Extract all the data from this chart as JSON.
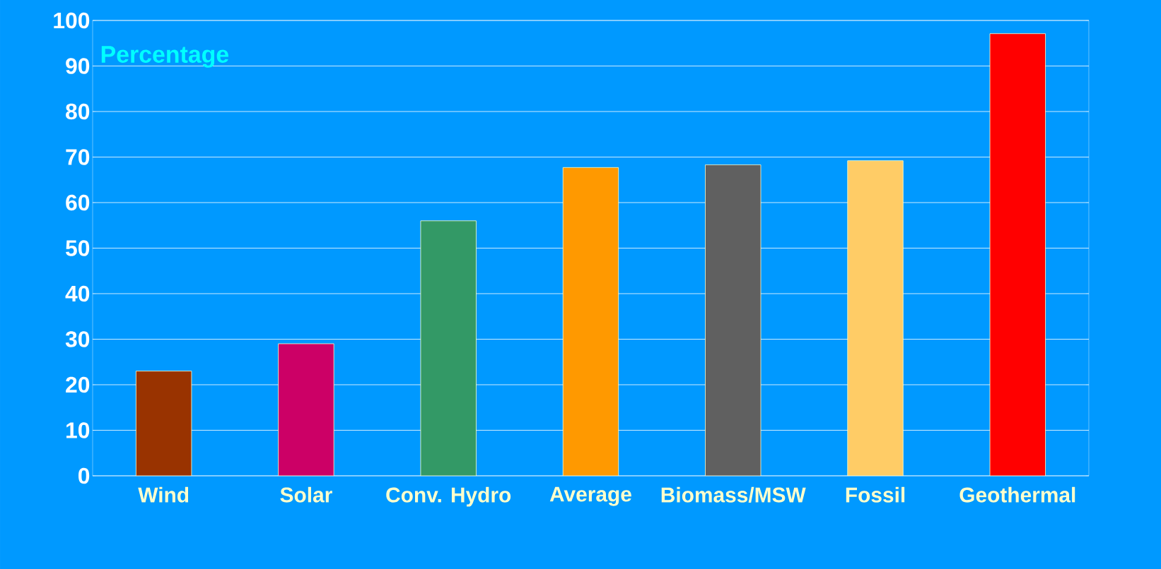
{
  "chart_data": {
    "type": "bar",
    "ylabel": "Percentage",
    "categories": [
      "Wind",
      "Solar",
      "Conv. Hydro",
      "Average",
      "Biomass/MSW",
      "Fossil",
      "Geothermal"
    ],
    "values": [
      23,
      29,
      56,
      67.7,
      68.3,
      69.2,
      97.1
    ],
    "colors": [
      "#993300",
      "#cc0066",
      "#339966",
      "#ff9900",
      "#606060",
      "#ffcc66",
      "#ff0000"
    ],
    "ylim": [
      0,
      100
    ],
    "yticks": [
      0,
      10,
      20,
      30,
      40,
      50,
      60,
      70,
      80,
      90,
      100
    ],
    "grid": "y"
  }
}
